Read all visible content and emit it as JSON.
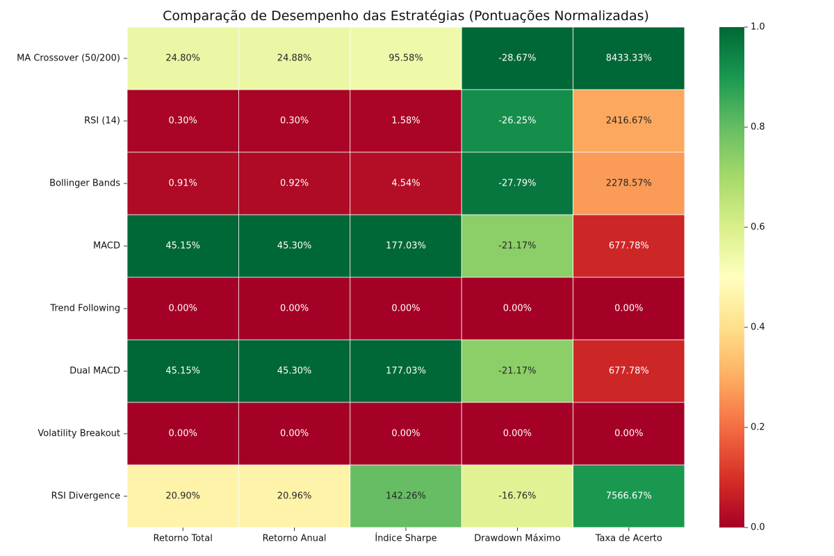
{
  "chart_data": {
    "type": "heatmap",
    "title": "Comparação de Desempenho das Estratégias (Pontuações Normalizadas)",
    "columns": [
      "Retorno Total",
      "Retorno Anual",
      "Índice Sharpe",
      "Drawdown Máximo",
      "Taxa de Acerto"
    ],
    "rows": [
      "MA Crossover (50/200)",
      "RSI (14)",
      "Bollinger Bands",
      "MACD",
      "Trend Following",
      "Dual MACD",
      "Volatility Breakout",
      "RSI Divergence"
    ],
    "normalized_scores": [
      [
        0.55,
        0.55,
        0.54,
        1.0,
        1.0
      ],
      [
        0.01,
        0.01,
        0.01,
        0.92,
        0.29
      ],
      [
        0.02,
        0.02,
        0.03,
        0.97,
        0.27
      ],
      [
        1.0,
        1.0,
        1.0,
        0.74,
        0.08
      ],
      [
        0.0,
        0.0,
        0.0,
        0.0,
        0.0
      ],
      [
        1.0,
        1.0,
        1.0,
        0.74,
        0.08
      ],
      [
        0.0,
        0.0,
        0.0,
        0.0,
        0.0
      ],
      [
        0.46,
        0.46,
        0.8,
        0.58,
        0.9
      ]
    ],
    "annotations": [
      [
        "24.80%",
        "24.88%",
        "95.58%",
        "-28.67%",
        "8433.33%"
      ],
      [
        "0.30%",
        "0.30%",
        "1.58%",
        "-26.25%",
        "2416.67%"
      ],
      [
        "0.91%",
        "0.92%",
        "4.54%",
        "-27.79%",
        "2278.57%"
      ],
      [
        "45.15%",
        "45.30%",
        "177.03%",
        "-21.17%",
        "677.78%"
      ],
      [
        "0.00%",
        "0.00%",
        "0.00%",
        "0.00%",
        "0.00%"
      ],
      [
        "45.15%",
        "45.30%",
        "177.03%",
        "-21.17%",
        "677.78%"
      ],
      [
        "0.00%",
        "0.00%",
        "0.00%",
        "0.00%",
        "0.00%"
      ],
      [
        "20.90%",
        "20.96%",
        "142.26%",
        "-16.76%",
        "7566.67%"
      ]
    ],
    "colormap": "RdYlGn",
    "colormap_stops": [
      "#a50026",
      "#d73027",
      "#f46d43",
      "#fdae61",
      "#fee08b",
      "#ffffbf",
      "#d9ef8b",
      "#a6d96a",
      "#66bd63",
      "#1a9850",
      "#006837"
    ],
    "vmin": 0,
    "vmax": 1,
    "colorbar_ticks": [
      "0.0",
      "0.2",
      "0.4",
      "0.6",
      "0.8",
      "1.0"
    ],
    "colorbar_tick_values": [
      0,
      0.2,
      0.4,
      0.6,
      0.8,
      1.0
    ],
    "grid_line_color": "#ffffff"
  }
}
